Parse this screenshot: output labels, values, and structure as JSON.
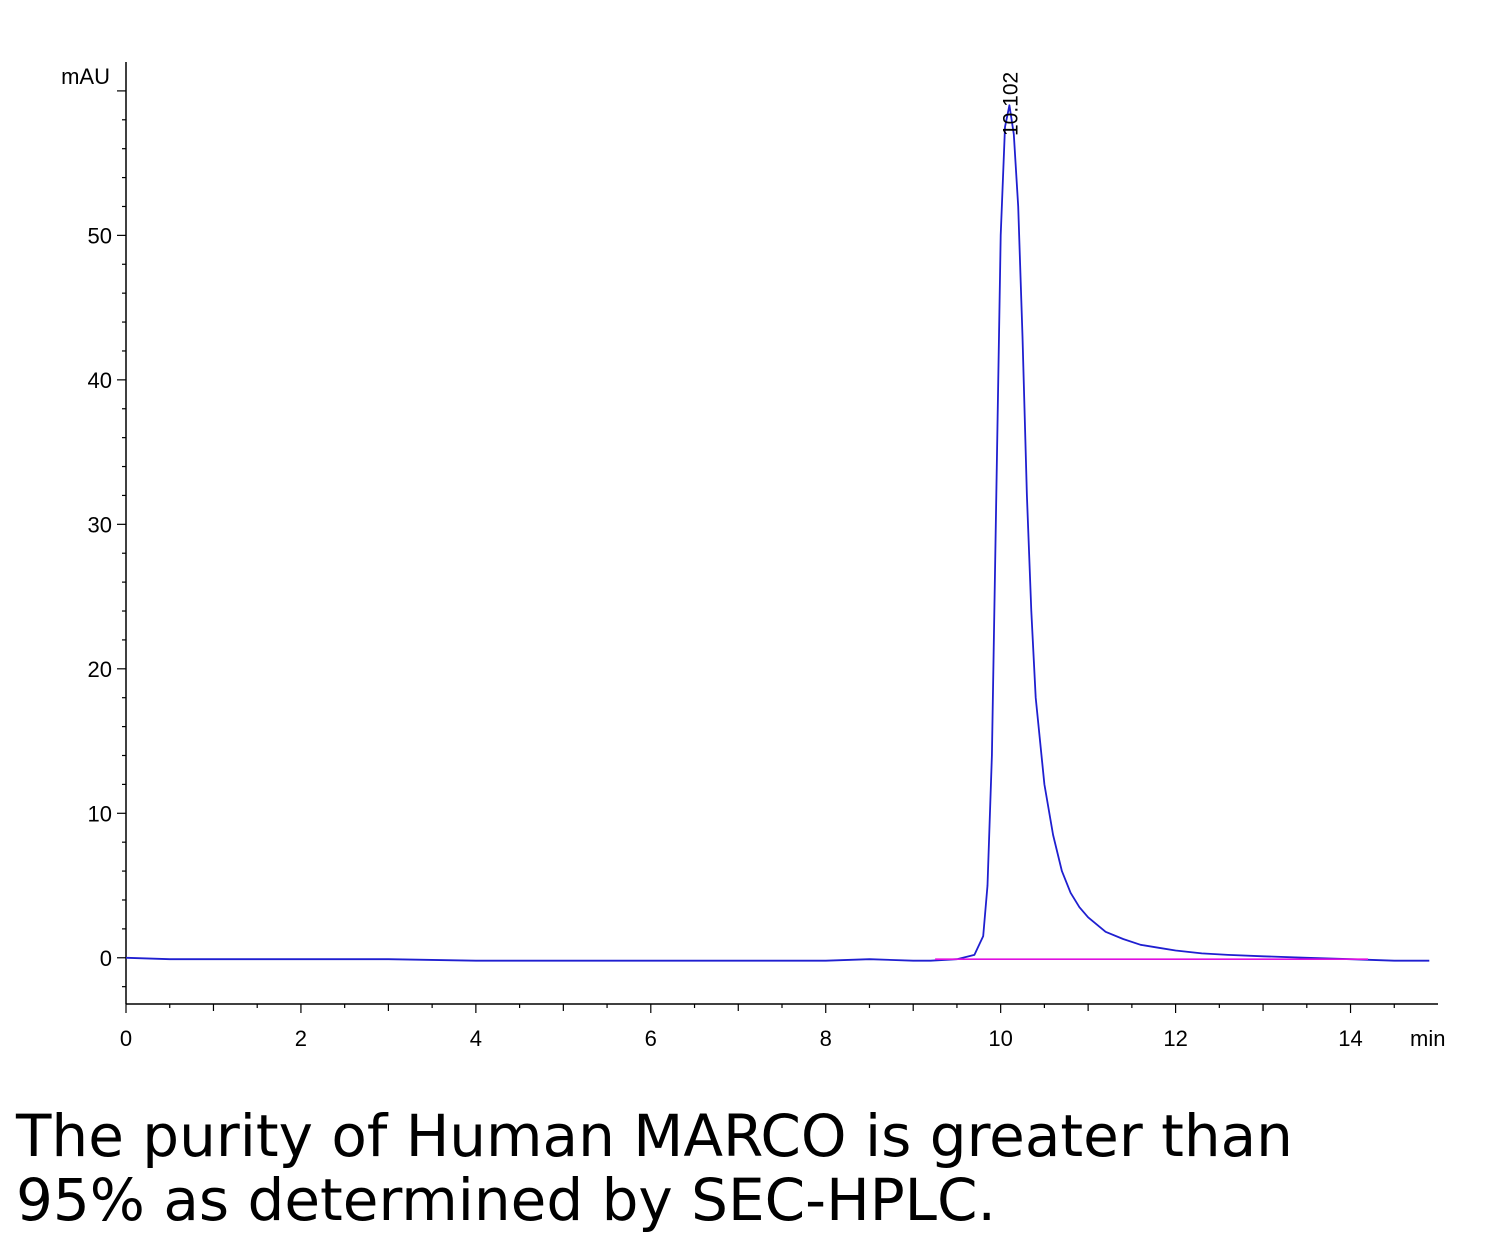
{
  "chart_data": {
    "type": "line",
    "xlabel": "min",
    "ylabel": "mAU",
    "xlim": [
      0,
      15
    ],
    "ylim": [
      -3.2,
      62
    ],
    "x_ticks": [
      "0",
      "2",
      "4",
      "6",
      "8",
      "10",
      "12",
      "14"
    ],
    "y_ticks": [
      "0",
      "10",
      "20",
      "30",
      "40",
      "50"
    ],
    "grid": false,
    "series": [
      {
        "color": "#1f1fd0",
        "x": [
          0,
          0.5,
          1,
          2,
          3,
          4,
          5,
          6,
          7,
          8,
          8.5,
          9,
          9.2,
          9.5,
          9.7,
          9.8,
          9.85,
          9.9,
          9.95,
          10.0,
          10.05,
          10.1,
          10.15,
          10.2,
          10.25,
          10.3,
          10.35,
          10.4,
          10.5,
          10.6,
          10.7,
          10.8,
          10.9,
          11.0,
          11.2,
          11.4,
          11.6,
          11.8,
          12.0,
          12.3,
          12.6,
          13.0,
          13.5,
          14.0,
          14.5,
          14.9
        ],
        "y": [
          0,
          -0.1,
          -0.1,
          -0.1,
          -0.1,
          -0.2,
          -0.2,
          -0.2,
          -0.2,
          -0.2,
          -0.1,
          -0.2,
          -0.2,
          -0.1,
          0.2,
          1.5,
          5,
          14,
          32,
          50,
          57.5,
          59,
          57,
          52,
          43,
          32,
          24,
          18,
          12,
          8.5,
          6,
          4.5,
          3.5,
          2.8,
          1.8,
          1.3,
          0.9,
          0.7,
          0.5,
          0.3,
          0.2,
          0.1,
          0.0,
          -0.1,
          -0.2,
          -0.2
        ]
      },
      {
        "color": "#e010e0",
        "x": [
          9.25,
          14.2
        ],
        "y": [
          -0.1,
          -0.1
        ]
      }
    ],
    "annotations": [
      {
        "text": "10.102",
        "x": 10.102,
        "y": 59
      }
    ]
  },
  "caption": {
    "line1": "The purity of Human MARCO is greater than",
    "line2": "95% as determined by SEC-HPLC."
  }
}
